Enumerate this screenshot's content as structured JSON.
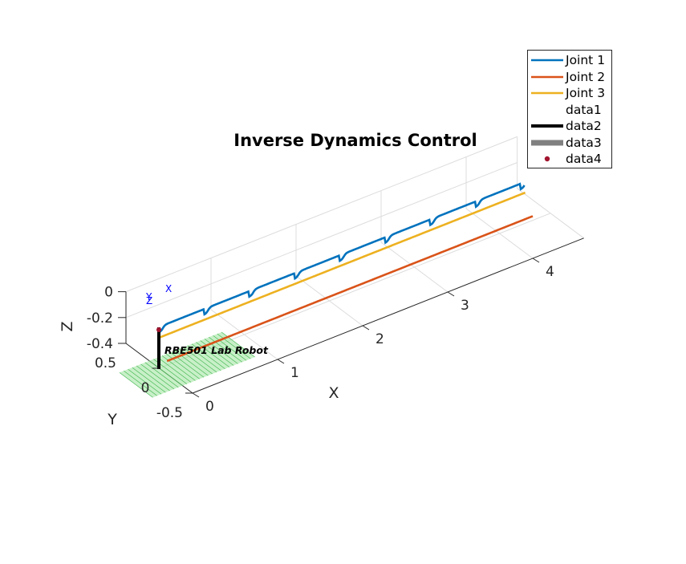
{
  "chart_data": {
    "type": "line",
    "title": "Inverse Dynamics Control",
    "xlabel": "X",
    "ylabel": "Y",
    "zlabel": "Z",
    "xlim": [
      0,
      4.5
    ],
    "ylim": [
      -0.5,
      0.5
    ],
    "zlim": [
      -0.4,
      0
    ],
    "x_ticks": [
      "0",
      "1",
      "2",
      "3",
      "4"
    ],
    "y_ticks": [
      "-0.5",
      "0",
      "0.5"
    ],
    "z_ticks": [
      "-0.4",
      "-0.2",
      "0"
    ],
    "grid": true,
    "legend_position": "top-right",
    "series": [
      {
        "name": "Joint 1",
        "color": "#0072bd",
        "x": [
          0.0,
          0.5,
          1.0,
          1.5,
          2.0,
          2.5,
          3.0,
          3.5,
          4.0,
          4.3
        ],
        "oscillation_periods": 8
      },
      {
        "name": "Joint 2",
        "color": "#d95319",
        "x": [
          0.0,
          4.5
        ]
      },
      {
        "name": "Joint 3",
        "color": "#edb120",
        "x": [
          0.0,
          4.5
        ]
      },
      {
        "name": "data1",
        "color": "#ffffff"
      },
      {
        "name": "data2",
        "color": "#000000"
      },
      {
        "name": "data3",
        "color": "#808080"
      },
      {
        "name": "data4",
        "color": "#a2142f"
      }
    ],
    "annotations": [
      {
        "text": "RBE501 Lab Robot"
      },
      {
        "text": "X",
        "color": "#0000ff"
      },
      {
        "text": "Y",
        "color": "#0000ff"
      },
      {
        "text": "Z",
        "color": "#0000ff"
      }
    ]
  }
}
